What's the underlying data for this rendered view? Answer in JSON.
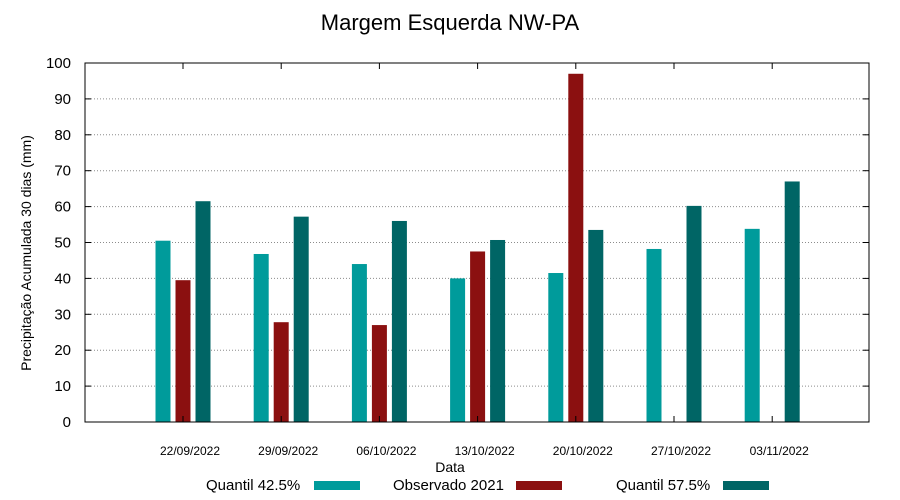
{
  "chart_data": {
    "type": "bar",
    "title": "Margem Esquerda NW-PA",
    "xlabel": "Data",
    "ylabel": "Precipitação Acumulada 30 dias (mm)",
    "ylim": [
      0,
      100
    ],
    "yticks": [
      0,
      10,
      20,
      30,
      40,
      50,
      60,
      70,
      80,
      90,
      100
    ],
    "grid": true,
    "legend_position": "bottom",
    "categories": [
      "22/09/2022",
      "29/09/2022",
      "06/10/2022",
      "13/10/2022",
      "20/10/2022",
      "27/10/2022",
      "03/11/2022"
    ],
    "series": [
      {
        "name": "Quantil 42.5%",
        "color": "#009b9b",
        "values": [
          50.5,
          46.8,
          44.0,
          40.0,
          41.5,
          48.2,
          53.8
        ]
      },
      {
        "name": "Observado 2021",
        "color": "#8b1010",
        "values": [
          39.5,
          27.8,
          27.0,
          47.5,
          97.0,
          null,
          null
        ]
      },
      {
        "name": "Quantil 57.5%",
        "color": "#006565",
        "values": [
          61.5,
          57.2,
          56.0,
          50.7,
          53.5,
          60.2,
          67.0
        ]
      }
    ]
  }
}
